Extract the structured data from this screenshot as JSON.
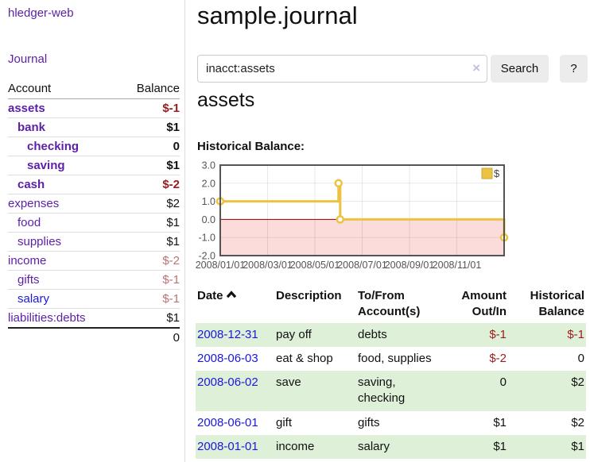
{
  "app": {
    "brand": "hledger-web",
    "nav_journal": "Journal"
  },
  "sidebar": {
    "header": {
      "account": "Account",
      "balance": "Balance"
    },
    "accounts": [
      {
        "name": "assets",
        "indent": 0,
        "bold": true,
        "balance": "$-1",
        "balance_style": "neg-strong",
        "link": "visited"
      },
      {
        "name": "bank",
        "indent": 1,
        "bold": true,
        "balance": "$1",
        "balance_style": "pos",
        "link": "visited"
      },
      {
        "name": "checking",
        "indent": 2,
        "bold": true,
        "balance": "0",
        "balance_style": "pos",
        "link": "visited"
      },
      {
        "name": "saving",
        "indent": 2,
        "bold": true,
        "balance": "$1",
        "balance_style": "pos",
        "link": "visited"
      },
      {
        "name": "cash",
        "indent": 1,
        "bold": true,
        "balance": "$-2",
        "balance_style": "neg-strong",
        "link": "visited"
      },
      {
        "name": "expenses",
        "indent": 0,
        "bold": false,
        "balance": "$2",
        "balance_style": "pos",
        "link": "visited"
      },
      {
        "name": "food",
        "indent": 1,
        "bold": false,
        "balance": "$1",
        "balance_style": "pos",
        "link": "visited"
      },
      {
        "name": "supplies",
        "indent": 1,
        "bold": false,
        "balance": "$1",
        "balance_style": "pos",
        "link": "visited"
      },
      {
        "name": "income",
        "indent": 0,
        "bold": false,
        "balance": "$-2",
        "balance_style": "neg-muted",
        "link": "visited"
      },
      {
        "name": "gifts",
        "indent": 1,
        "bold": false,
        "balance": "$-1",
        "balance_style": "neg-muted",
        "link": "visited"
      },
      {
        "name": "salary",
        "indent": 1,
        "bold": false,
        "balance": "$-1",
        "balance_style": "neg-muted",
        "link": "unvisited"
      },
      {
        "name": "liabilities:debts",
        "indent": 0,
        "bold": false,
        "balance": "$1",
        "balance_style": "pos",
        "link": "visited"
      }
    ],
    "total": "0"
  },
  "header": {
    "title": "sample.journal"
  },
  "search": {
    "value": "inacct:assets",
    "clear_icon": "×",
    "button": "Search",
    "help_button": "?"
  },
  "account_page": {
    "title": "assets",
    "chart_label": "Historical Balance:"
  },
  "chart_data": {
    "type": "line",
    "step": true,
    "title": "Historical Balance of assets",
    "xlim": [
      0,
      12
    ],
    "ylim": [
      -2,
      3
    ],
    "y_ticks": [
      3,
      2,
      1,
      0,
      -1,
      -2
    ],
    "x_ticks": [
      {
        "pos": 0,
        "label": "2008/01/01"
      },
      {
        "pos": 2,
        "label": "2008/03/01"
      },
      {
        "pos": 4,
        "label": "2008/05/01"
      },
      {
        "pos": 6,
        "label": "2008/07/01"
      },
      {
        "pos": 8,
        "label": "2008/09/01"
      },
      {
        "pos": 10,
        "label": "2008/11/01"
      }
    ],
    "series": [
      {
        "name": "$",
        "color": "#edc240",
        "points": [
          {
            "date": "2008-01-01",
            "x": 0,
            "y": 1
          },
          {
            "date": "2008-06-01",
            "x": 5,
            "y": 2
          },
          {
            "date": "2008-06-03",
            "x": 5.07,
            "y": 0
          },
          {
            "date": "2008-12-31",
            "x": 12,
            "y": -1
          }
        ]
      }
    ],
    "zero_line_color": "#8b0000",
    "negative_region_color": "#fcdbdb",
    "legend": {
      "label": "$",
      "position": "top-right"
    },
    "grid": true
  },
  "register": {
    "columns": [
      {
        "label": "Date",
        "sort": "asc"
      },
      {
        "label": "Description"
      },
      {
        "label": "To/From Account(s)"
      },
      {
        "label": "Amount Out/In",
        "align": "right"
      },
      {
        "label": "Historical Balance",
        "align": "right"
      }
    ],
    "rows": [
      {
        "date": "2008-12-31",
        "description": "pay off",
        "accounts": "debts",
        "amount": "$-1",
        "amount_neg": true,
        "balance": "$-1",
        "balance_neg": true,
        "striped": true
      },
      {
        "date": "2008-06-03",
        "description": "eat & shop",
        "accounts": "food, supplies",
        "amount": "$-2",
        "amount_neg": true,
        "balance": "0",
        "balance_neg": false,
        "striped": false
      },
      {
        "date": "2008-06-02",
        "description": "save",
        "accounts": "saving, checking",
        "amount": "0",
        "amount_neg": false,
        "balance": "$2",
        "balance_neg": false,
        "striped": true
      },
      {
        "date": "2008-06-01",
        "description": "gift",
        "accounts": "gifts",
        "amount": "$1",
        "amount_neg": false,
        "balance": "$2",
        "balance_neg": false,
        "striped": false
      },
      {
        "date": "2008-01-01",
        "description": "income",
        "accounts": "salary",
        "amount": "$1",
        "amount_neg": false,
        "balance": "$1",
        "balance_neg": false,
        "striped": true
      }
    ]
  }
}
